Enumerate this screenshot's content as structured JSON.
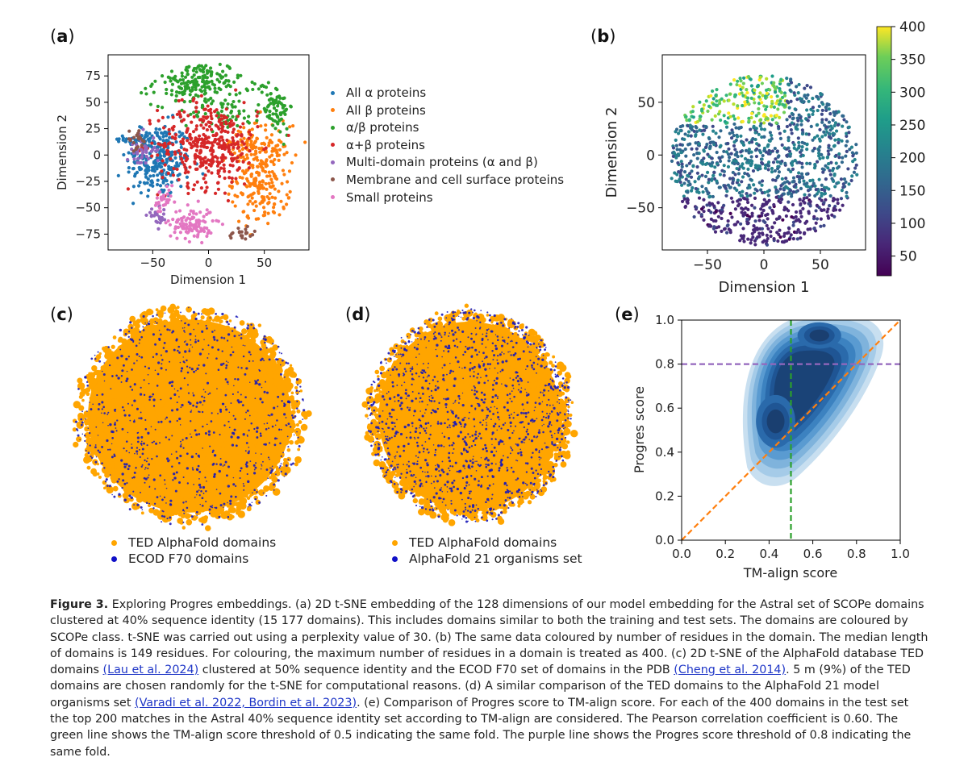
{
  "panels": {
    "a": {
      "label": "a"
    },
    "b": {
      "label": "b"
    },
    "c": {
      "label": "c"
    },
    "d": {
      "label": "d"
    },
    "e": {
      "label": "e"
    }
  },
  "legend_a": [
    {
      "label": "All α proteins",
      "color": "#1f77b4"
    },
    {
      "label": "All β proteins",
      "color": "#ff7f0e"
    },
    {
      "label": "α/β proteins",
      "color": "#2ca02c"
    },
    {
      "label": "α+β proteins",
      "color": "#d62728"
    },
    {
      "label": "Multi-domain proteins (α and β)",
      "color": "#9467bd"
    },
    {
      "label": "Membrane and cell surface proteins",
      "color": "#8c564b"
    },
    {
      "label": "Small proteins",
      "color": "#e377c2"
    }
  ],
  "legend_c": [
    {
      "label": "TED AlphaFold domains",
      "color": "#ffa500"
    },
    {
      "label": "ECOD F70 domains",
      "color": "#1010c8"
    }
  ],
  "legend_d": [
    {
      "label": "TED AlphaFold domains",
      "color": "#ffa500"
    },
    {
      "label": "AlphaFold 21 organisms set",
      "color": "#1010c8"
    }
  ],
  "chart_data": [
    {
      "type": "scatter",
      "panel": "a",
      "xlabel": "Dimension 1",
      "ylabel": "Dimension 2",
      "xlim": [
        -90,
        90
      ],
      "ylim": [
        -90,
        95
      ],
      "xticks": [
        -50,
        0,
        50
      ],
      "yticks": [
        -75,
        -50,
        -25,
        0,
        25,
        50,
        75
      ],
      "series": [
        {
          "name": "All α proteins",
          "color": "#1f77b4",
          "clusters": [
            [
              -45,
              -5,
              18,
              22,
              260
            ],
            [
              -60,
              15,
              10,
              8,
              40
            ]
          ]
        },
        {
          "name": "All β proteins",
          "color": "#ff7f0e",
          "clusters": [
            [
              48,
              -20,
              16,
              30,
              260
            ],
            [
              30,
              10,
              10,
              10,
              40
            ]
          ]
        },
        {
          "name": "α/β proteins",
          "color": "#2ca02c",
          "clusters": [
            [
              -10,
              68,
              25,
              13,
              200
            ],
            [
              60,
              48,
              10,
              18,
              90
            ],
            [
              15,
              40,
              20,
              10,
              60
            ]
          ]
        },
        {
          "name": "α+β proteins",
          "color": "#d62728",
          "clusters": [
            [
              0,
              10,
              28,
              25,
              380
            ]
          ]
        },
        {
          "name": "Multi-domain proteins (α and β)",
          "color": "#9467bd",
          "clusters": [
            [
              -60,
              5,
              8,
              10,
              40
            ],
            [
              -45,
              -60,
              6,
              6,
              25
            ]
          ]
        },
        {
          "name": "Membrane and cell surface proteins",
          "color": "#8c564b",
          "clusters": [
            [
              -65,
              15,
              6,
              6,
              20
            ],
            [
              30,
              -75,
              8,
              5,
              20
            ]
          ]
        },
        {
          "name": "Small proteins",
          "color": "#e377c2",
          "clusters": [
            [
              -15,
              -65,
              12,
              10,
              110
            ],
            [
              -40,
              -45,
              6,
              8,
              30
            ]
          ]
        }
      ]
    },
    {
      "type": "scatter",
      "panel": "b",
      "xlabel": "Dimension 1",
      "ylabel": "Dimension 2",
      "xlim": [
        -90,
        90
      ],
      "ylim": [
        -90,
        95
      ],
      "xticks": [
        -50,
        0,
        50
      ],
      "yticks": [
        -50,
        0,
        50
      ],
      "colorbar": {
        "min": 20,
        "max": 400,
        "ticks": [
          50,
          100,
          150,
          200,
          250,
          300,
          350,
          400
        ],
        "colormap": "viridis"
      }
    },
    {
      "type": "scatter",
      "panel": "c",
      "series": [
        {
          "name": "TED AlphaFold domains",
          "color": "#ffa500"
        },
        {
          "name": "ECOD F70 domains",
          "color": "#1010c8"
        }
      ]
    },
    {
      "type": "scatter",
      "panel": "d",
      "series": [
        {
          "name": "TED AlphaFold domains",
          "color": "#ffa500"
        },
        {
          "name": "AlphaFold 21 organisms set",
          "color": "#1010c8"
        }
      ]
    },
    {
      "type": "heatmap",
      "panel": "e",
      "xlabel": "TM-align score",
      "ylabel": "Progres score",
      "xlim": [
        0.0,
        1.0
      ],
      "ylim": [
        0.0,
        1.0
      ],
      "xticks": [
        0.0,
        0.2,
        0.4,
        0.6,
        0.8,
        1.0
      ],
      "yticks": [
        0.0,
        0.2,
        0.4,
        0.6,
        0.8,
        1.0
      ],
      "threshold_lines": [
        {
          "orientation": "vertical",
          "value": 0.5,
          "color": "#2ca02c"
        },
        {
          "orientation": "horizontal",
          "value": 0.8,
          "color": "#9467bd"
        },
        {
          "orientation": "diagonal",
          "from": [
            0,
            0
          ],
          "to": [
            1,
            1
          ],
          "color": "#ff7f0e"
        }
      ],
      "density_peaks": [
        [
          0.43,
          0.54
        ],
        [
          0.63,
          0.93
        ]
      ]
    }
  ],
  "caption": {
    "title": "Figure 3.",
    "text_1": " Exploring Progres embeddings. (a) 2D t-SNE embedding of the 128 dimensions of our model embedding for the Astral set of SCOPe domains clustered at 40% sequence identity (15 177 domains). This includes domains similar to both the training and test sets. The domains are coloured by SCOPe class. t-SNE was carried out using a perplexity value of 30. (b) The same data coloured by number of residues in the domain. The median length of domains is 149 residues. For colouring, the maximum number of residues in a domain is treated as 400. (c) 2D t-SNE of the AlphaFold database TED domains ",
    "cite_1": "(Lau et al. 2024)",
    "text_2": " clustered at 50% sequence identity and the ECOD F70 set of domains in the PDB ",
    "cite_2": "(Cheng et al. 2014)",
    "text_3": ". 5 m (9%) of the TED domains are chosen randomly for the t-SNE for computational reasons. (d) A similar comparison of the TED domains to the AlphaFold 21 model organisms set ",
    "cite_3": "(Varadi et al. 2022, Bordin et al. 2023)",
    "text_4": ". (e) Comparison of Progres score to TM-align score. For each of the 400 domains in the test set the top 200 matches in the Astral 40% sequence identity set according to TM-align are considered. The Pearson correlation coefficient is 0.60. The green line shows the TM-align score threshold of 0.5 indicating the same fold. The purple line shows the Progres score threshold of 0.8 indicating the same fold."
  }
}
